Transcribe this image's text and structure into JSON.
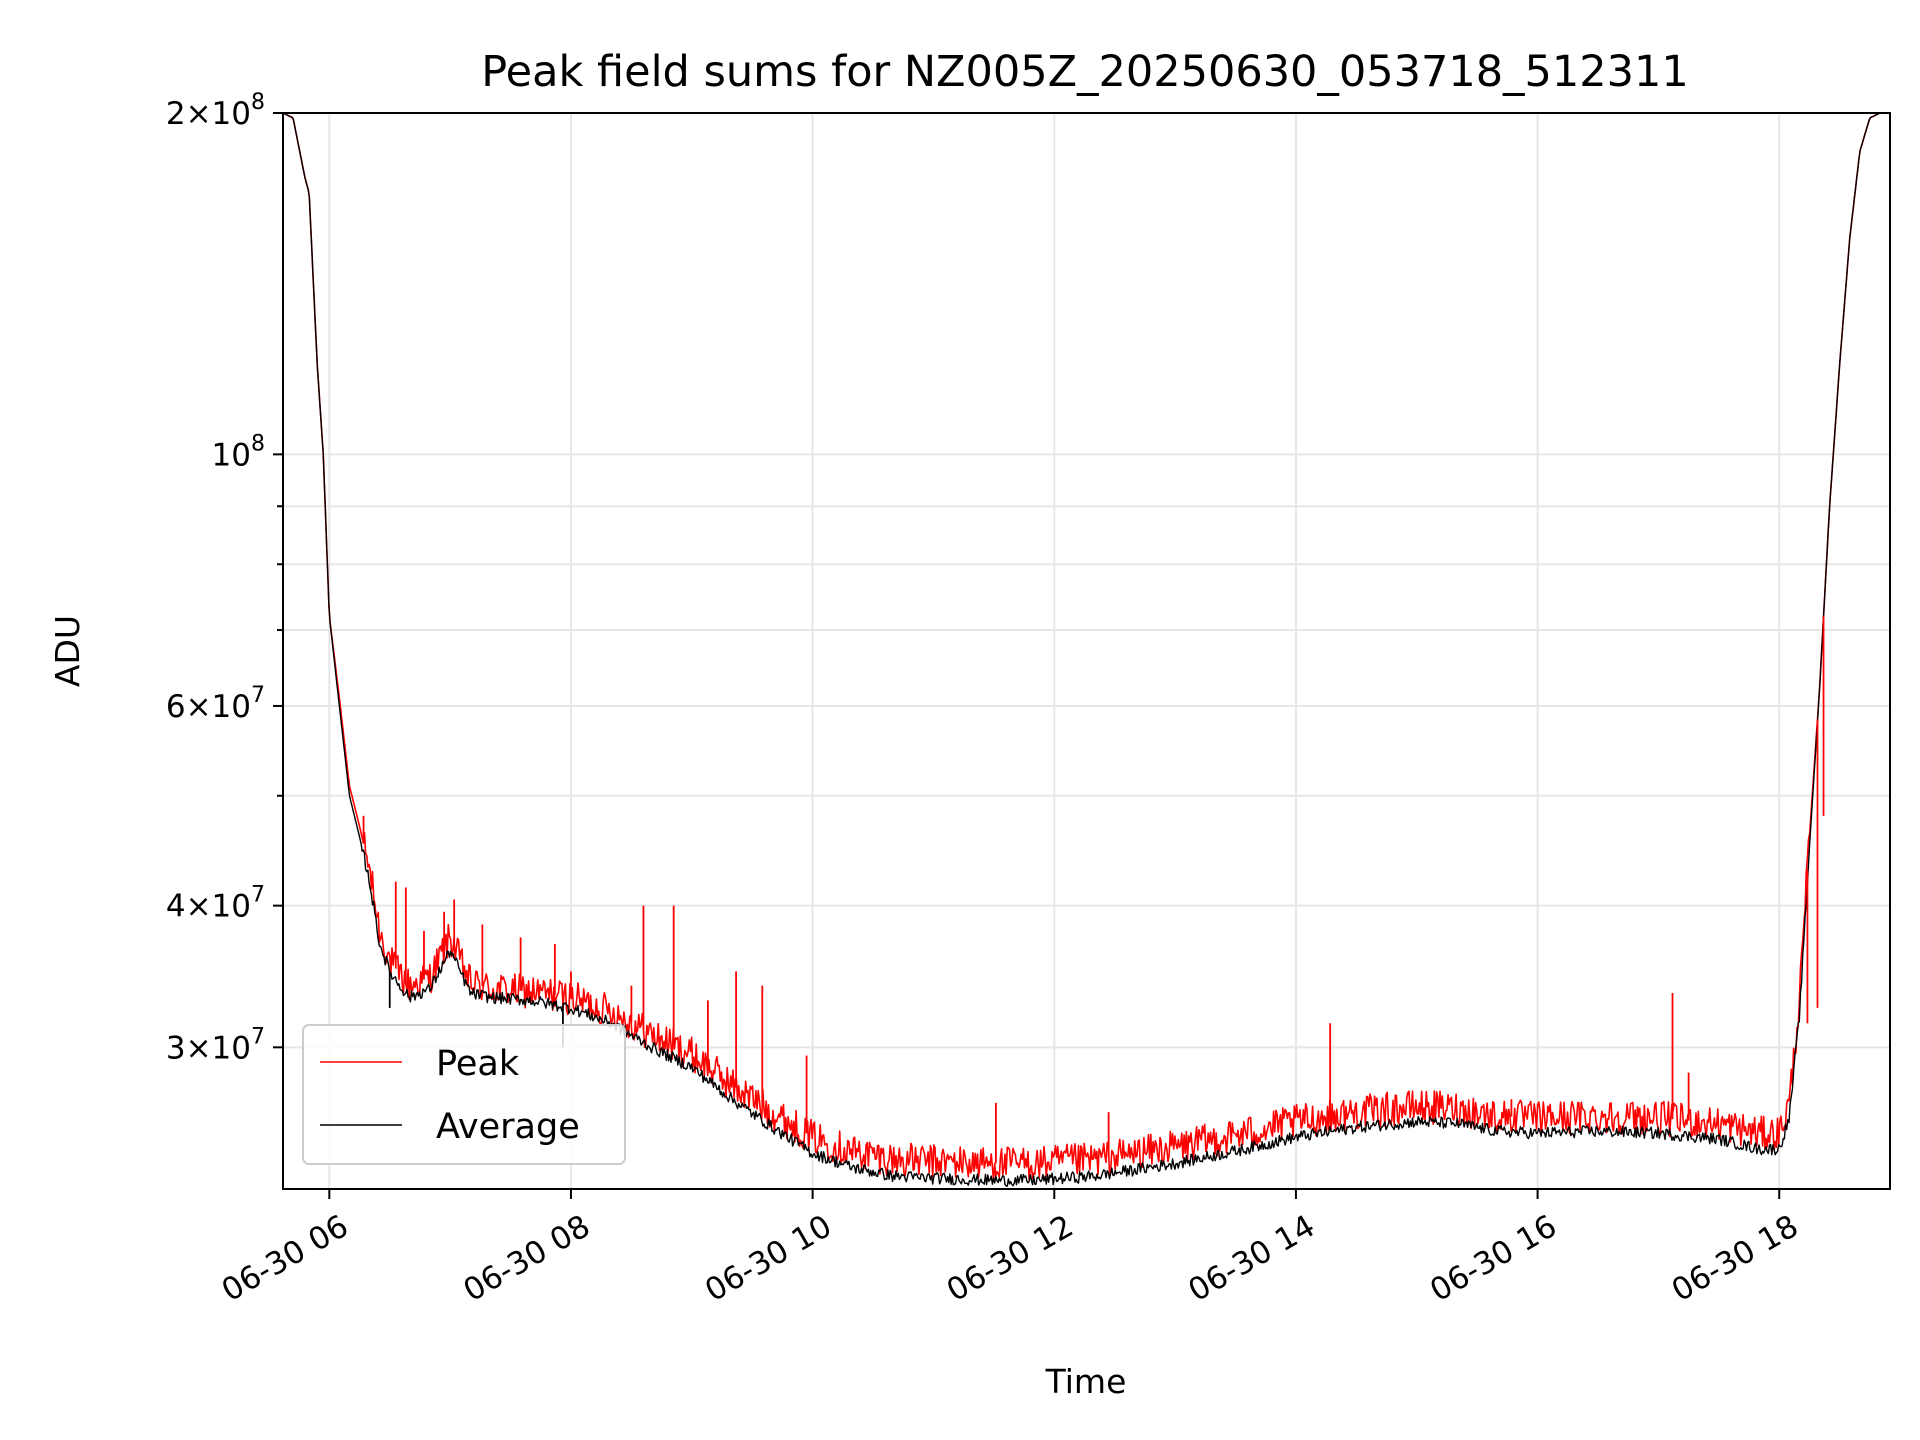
{
  "chart_data": {
    "type": "line",
    "title": "Peak field sums for NZ005Z_20250630_053718_512311",
    "xlabel": "Time",
    "ylabel": "ADU",
    "yscale": "log",
    "grid": true,
    "legend_position": "lower-left",
    "xlim": [
      "2025-06-30 05:37",
      "2025-06-30 18:55"
    ],
    "ylim": [
      22500000,
      200000000
    ],
    "x_ticks": [
      {
        "value": "2025-06-30 06:00",
        "label": "06-30 06"
      },
      {
        "value": "2025-06-30 08:00",
        "label": "06-30 08"
      },
      {
        "value": "2025-06-30 10:00",
        "label": "06-30 10"
      },
      {
        "value": "2025-06-30 12:00",
        "label": "06-30 12"
      },
      {
        "value": "2025-06-30 14:00",
        "label": "06-30 14"
      },
      {
        "value": "2025-06-30 16:00",
        "label": "06-30 16"
      },
      {
        "value": "2025-06-30 18:00",
        "label": "06-30 18"
      }
    ],
    "y_ticks": [
      {
        "value": 30000000,
        "base": "3×10",
        "exp": "7"
      },
      {
        "value": 40000000,
        "base": "4×10",
        "exp": "7"
      },
      {
        "value": 60000000,
        "base": "6×10",
        "exp": "7"
      },
      {
        "value": 100000000,
        "base": "10",
        "exp": "8"
      },
      {
        "value": 200000000,
        "base": "2×10",
        "exp": "8"
      }
    ],
    "y_minor_ticks": [
      50000000,
      70000000,
      80000000,
      90000000
    ],
    "series": [
      {
        "name": "Average",
        "color": "#000000",
        "x": [
          "2025-06-30 05:37",
          "2025-06-30 05:42",
          "2025-06-30 05:48",
          "2025-06-30 05:50",
          "2025-06-30 05:54",
          "2025-06-30 05:57",
          "2025-06-30 06:00",
          "2025-06-30 06:05",
          "2025-06-30 06:10",
          "2025-06-30 06:15",
          "2025-06-30 06:20",
          "2025-06-30 06:25",
          "2025-06-30 06:30",
          "2025-06-30 06:35",
          "2025-06-30 06:40",
          "2025-06-30 06:50",
          "2025-06-30 07:00",
          "2025-06-30 07:05",
          "2025-06-30 07:10",
          "2025-06-30 07:20",
          "2025-06-30 07:40",
          "2025-06-30 08:00",
          "2025-06-30 08:20",
          "2025-06-30 08:40",
          "2025-06-30 09:00",
          "2025-06-30 09:20",
          "2025-06-30 09:40",
          "2025-06-30 10:00",
          "2025-06-30 10:20",
          "2025-06-30 10:40",
          "2025-06-30 11:00",
          "2025-06-30 11:30",
          "2025-06-30 11:50",
          "2025-06-30 12:20",
          "2025-06-30 12:40",
          "2025-06-30 13:00",
          "2025-06-30 13:30",
          "2025-06-30 14:00",
          "2025-06-30 14:30",
          "2025-06-30 15:00",
          "2025-06-30 15:20",
          "2025-06-30 15:40",
          "2025-06-30 16:00",
          "2025-06-30 16:30",
          "2025-06-30 17:00",
          "2025-06-30 17:30",
          "2025-06-30 17:50",
          "2025-06-30 18:00",
          "2025-06-30 18:05",
          "2025-06-30 18:10",
          "2025-06-30 18:15",
          "2025-06-30 18:20",
          "2025-06-30 18:25",
          "2025-06-30 18:30",
          "2025-06-30 18:35",
          "2025-06-30 18:40",
          "2025-06-30 18:45",
          "2025-06-30 18:50",
          "2025-06-30 18:55"
        ],
        "y": [
          200000000,
          198000000,
          175000000,
          170000000,
          120000000,
          100000000,
          72000000,
          60000000,
          50000000,
          46000000,
          42000000,
          37000000,
          35000000,
          34000000,
          33200000,
          33800000,
          36500000,
          35000000,
          33500000,
          33200000,
          33000000,
          32500000,
          31500000,
          30000000,
          28800000,
          27000000,
          25500000,
          24200000,
          23500000,
          23100000,
          23000000,
          22900000,
          22900000,
          23100000,
          23400000,
          23700000,
          24300000,
          25000000,
          25500000,
          25800000,
          25700000,
          25300000,
          25200000,
          25300000,
          25200000,
          24900000,
          24400000,
          24400000,
          26000000,
          32000000,
          45000000,
          62000000,
          90000000,
          120000000,
          155000000,
          185000000,
          198000000,
          200000000,
          200000000
        ]
      },
      {
        "name": "Peak",
        "color": "#ff0000",
        "x": [
          "2025-06-30 05:37",
          "2025-06-30 05:42",
          "2025-06-30 05:48",
          "2025-06-30 05:50",
          "2025-06-30 05:54",
          "2025-06-30 05:57",
          "2025-06-30 06:00",
          "2025-06-30 06:05",
          "2025-06-30 06:10",
          "2025-06-30 06:15",
          "2025-06-30 06:20",
          "2025-06-30 06:25",
          "2025-06-30 06:30",
          "2025-06-30 06:35",
          "2025-06-30 06:40",
          "2025-06-30 06:50",
          "2025-06-30 07:00",
          "2025-06-30 07:05",
          "2025-06-30 07:10",
          "2025-06-30 07:20",
          "2025-06-30 07:40",
          "2025-06-30 08:00",
          "2025-06-30 08:20",
          "2025-06-30 08:40",
          "2025-06-30 09:00",
          "2025-06-30 09:20",
          "2025-06-30 09:40",
          "2025-06-30 10:00",
          "2025-06-30 10:20",
          "2025-06-30 10:40",
          "2025-06-30 11:00",
          "2025-06-30 11:30",
          "2025-06-30 11:50",
          "2025-06-30 12:20",
          "2025-06-30 12:40",
          "2025-06-30 13:00",
          "2025-06-30 13:30",
          "2025-06-30 14:00",
          "2025-06-30 14:30",
          "2025-06-30 15:00",
          "2025-06-30 15:20",
          "2025-06-30 15:40",
          "2025-06-30 16:00",
          "2025-06-30 16:30",
          "2025-06-30 17:00",
          "2025-06-30 17:30",
          "2025-06-30 17:50",
          "2025-06-30 18:00",
          "2025-06-30 18:05",
          "2025-06-30 18:10",
          "2025-06-30 18:15",
          "2025-06-30 18:20",
          "2025-06-30 18:25",
          "2025-06-30 18:30",
          "2025-06-30 18:35",
          "2025-06-30 18:40",
          "2025-06-30 18:45",
          "2025-06-30 18:50",
          "2025-06-30 18:55"
        ],
        "y": [
          200000000,
          198000000,
          175000000,
          170000000,
          120000000,
          100000000,
          72000000,
          61000000,
          51000000,
          47000000,
          43000000,
          38000000,
          35800000,
          34800000,
          34000000,
          34600000,
          37500000,
          35800000,
          34200000,
          33800000,
          33600000,
          33200000,
          32300000,
          30800000,
          29600000,
          27800000,
          26300000,
          25000000,
          24300000,
          23900000,
          23800000,
          23700000,
          23700000,
          23900000,
          24200000,
          24500000,
          25100000,
          25800000,
          26300000,
          26600000,
          26500000,
          26100000,
          26000000,
          26100000,
          26000000,
          25700000,
          25200000,
          25200000,
          26800000,
          33000000,
          46000000,
          62000000,
          90000000,
          120000000,
          155000000,
          185000000,
          198000000,
          200000000,
          200000000
        ]
      }
    ],
    "peak_spikes": [
      {
        "x": "2025-06-30 06:17",
        "y": 48000000
      },
      {
        "x": "2025-06-30 06:33",
        "y": 42000000
      },
      {
        "x": "2025-06-30 06:38",
        "y": 41500000
      },
      {
        "x": "2025-06-30 06:47",
        "y": 38000000
      },
      {
        "x": "2025-06-30 06:57",
        "y": 39500000
      },
      {
        "x": "2025-06-30 07:02",
        "y": 40500000
      },
      {
        "x": "2025-06-30 07:16",
        "y": 38500000
      },
      {
        "x": "2025-06-30 07:35",
        "y": 37500000
      },
      {
        "x": "2025-06-30 07:52",
        "y": 37000000
      },
      {
        "x": "2025-06-30 08:00",
        "y": 35000000
      },
      {
        "x": "2025-06-30 08:30",
        "y": 34000000
      },
      {
        "x": "2025-06-30 08:36",
        "y": 40000000
      },
      {
        "x": "2025-06-30 08:51",
        "y": 40000000
      },
      {
        "x": "2025-06-30 09:08",
        "y": 33000000
      },
      {
        "x": "2025-06-30 09:22",
        "y": 35000000
      },
      {
        "x": "2025-06-30 09:35",
        "y": 34000000
      },
      {
        "x": "2025-06-30 09:57",
        "y": 29500000
      },
      {
        "x": "2025-06-30 11:31",
        "y": 26800000
      },
      {
        "x": "2025-06-30 12:27",
        "y": 26300000
      },
      {
        "x": "2025-06-30 14:17",
        "y": 31500000
      },
      {
        "x": "2025-06-30 15:47",
        "y": 27000000
      },
      {
        "x": "2025-06-30 16:50",
        "y": 26500000
      },
      {
        "x": "2025-06-30 17:07",
        "y": 33500000
      },
      {
        "x": "2025-06-30 17:15",
        "y": 28500000
      },
      {
        "x": "2025-06-30 18:14",
        "y": 31500000
      },
      {
        "x": "2025-06-30 18:19",
        "y": 32500000
      },
      {
        "x": "2025-06-30 18:22",
        "y": 48000000
      }
    ],
    "average_dips": [
      {
        "x": "2025-06-30 06:30",
        "y": 32500000
      },
      {
        "x": "2025-06-30 07:56",
        "y": 30000000
      }
    ]
  }
}
